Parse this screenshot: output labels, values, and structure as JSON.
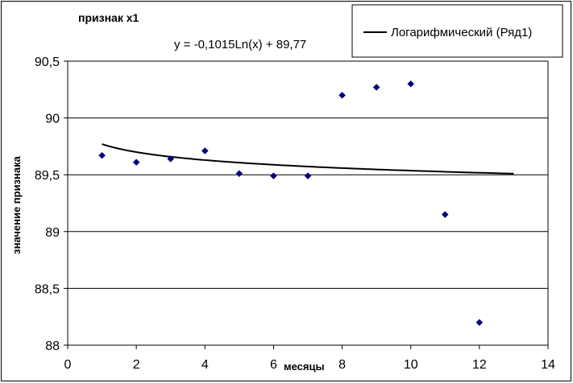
{
  "chart_data": {
    "type": "scatter",
    "title": "признак х1",
    "xlabel": "месяцы",
    "ylabel": "значение признака",
    "xlim": [
      0,
      14
    ],
    "ylim": [
      88,
      90.5
    ],
    "x_ticks": [
      "0",
      "2",
      "4",
      "6",
      "8",
      "10",
      "12",
      "14"
    ],
    "y_ticks": [
      "88",
      "88,5",
      "89",
      "89,5",
      "90",
      "90,5"
    ],
    "grid": "horizontal",
    "legend_position": "top-right",
    "series": [
      {
        "kind": "points",
        "color": "#000080",
        "marker": "diamond",
        "points": [
          {
            "x": 1,
            "y": 89.67
          },
          {
            "x": 2,
            "y": 89.61
          },
          {
            "x": 3,
            "y": 89.64
          },
          {
            "x": 4,
            "y": 89.71
          },
          {
            "x": 5,
            "y": 89.51
          },
          {
            "x": 6,
            "y": 89.49
          },
          {
            "x": 7,
            "y": 89.49
          },
          {
            "x": 8,
            "y": 90.2
          },
          {
            "x": 9,
            "y": 90.27
          },
          {
            "x": 10,
            "y": 90.3
          },
          {
            "x": 11,
            "y": 89.15
          },
          {
            "x": 12,
            "y": 88.2
          }
        ]
      },
      {
        "kind": "trendline",
        "name": "Логарифмический (Ряд1)",
        "color": "#000000",
        "model": "logarithmic",
        "a": -0.1015,
        "b": 89.77,
        "x_range": [
          1,
          13
        ],
        "equation_label": "y = -0,1015Ln(x) + 89,77"
      }
    ]
  }
}
